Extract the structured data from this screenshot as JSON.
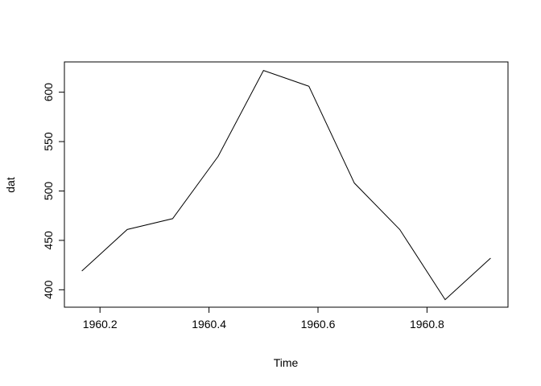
{
  "chart_data": {
    "type": "line",
    "title": "",
    "xlabel": "Time",
    "ylabel": "dat",
    "xlim": [
      1960.1347,
      1960.9486
    ],
    "ylim": [
      382.36,
      630.64
    ],
    "xticks": [
      1960.2,
      1960.4,
      1960.6,
      1960.8
    ],
    "xtick_labels": [
      "1960.2",
      "1960.4",
      "1960.6",
      "1960.8"
    ],
    "yticks": [
      400,
      450,
      500,
      550,
      600
    ],
    "ytick_labels": [
      "400",
      "450",
      "500",
      "550",
      "600"
    ],
    "grid": false,
    "legend": "none",
    "series": [
      {
        "color": "#000000",
        "x": [
          1960.1667,
          1960.25,
          1960.3333,
          1960.4167,
          1960.5,
          1960.5833,
          1960.6667,
          1960.75,
          1960.8333,
          1960.9167
        ],
        "y": [
          419,
          461,
          472,
          535,
          622,
          606,
          508,
          461,
          390,
          432
        ]
      }
    ]
  }
}
